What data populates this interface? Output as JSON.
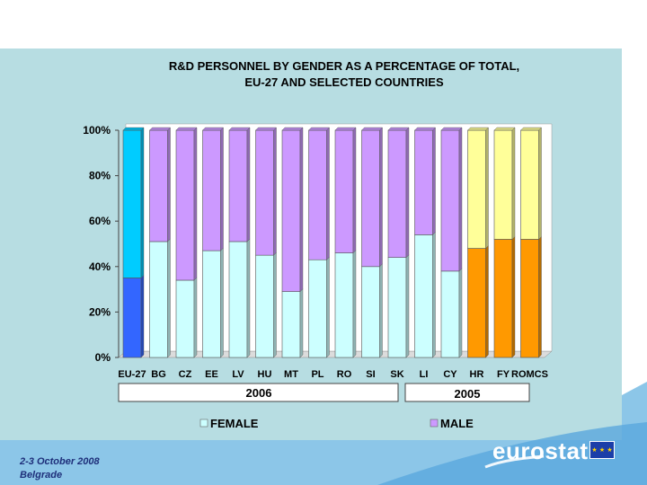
{
  "chart_data": {
    "type": "bar",
    "stacked": true,
    "title_line1": "R&D PERSONNEL BY GENDER AS A PERCENTAGE OF TOTAL,",
    "title_line2": "EU-27 AND SELECTED COUNTRIES",
    "categories": [
      "EU-27",
      "BG",
      "CZ",
      "EE",
      "LV",
      "HU",
      "MT",
      "PL",
      "RO",
      "SI",
      "SK",
      "LI",
      "CY",
      "HR",
      "FYROM",
      "CS"
    ],
    "category_labels": [
      "EU-27",
      "BG",
      "CZ",
      "EE",
      "LV",
      "HU",
      "MT",
      "PL",
      "RO",
      "SI",
      "SK",
      "LI",
      "CY",
      "HR",
      "FY",
      "ROMCS"
    ],
    "series": [
      {
        "name": "FEMALE",
        "values": [
          35,
          51,
          34,
          47,
          51,
          45,
          29,
          43,
          46,
          40,
          44,
          54,
          38,
          48,
          52,
          52
        ]
      },
      {
        "name": "MALE",
        "values": [
          65,
          49,
          66,
          53,
          49,
          55,
          71,
          57,
          54,
          60,
          56,
          46,
          62,
          52,
          48,
          48
        ]
      }
    ],
    "color_groups": [
      "eu",
      "c",
      "c",
      "c",
      "c",
      "c",
      "c",
      "c",
      "c",
      "c",
      "c",
      "c",
      "c",
      "y",
      "y",
      "y"
    ],
    "y_ticks": [
      "0%",
      "20%",
      "40%",
      "60%",
      "80%",
      "100%"
    ],
    "ylim": [
      0,
      100
    ],
    "groups": [
      {
        "label": "2006",
        "from": 0,
        "to": 10
      },
      {
        "label": "2005",
        "from": 11,
        "to": 15
      }
    ],
    "legend": {
      "female": "FEMALE",
      "male": "MALE"
    }
  },
  "colors": {
    "eu_female": "#3366ff",
    "eu_male": "#00ccff",
    "female": "#ccffff",
    "male": "#cc99ff",
    "y_female": "#ff9900",
    "y_male": "#ffff99"
  },
  "footer": {
    "date": "2-3 October 2008",
    "city": "Belgrade",
    "logo": "eurostat"
  }
}
